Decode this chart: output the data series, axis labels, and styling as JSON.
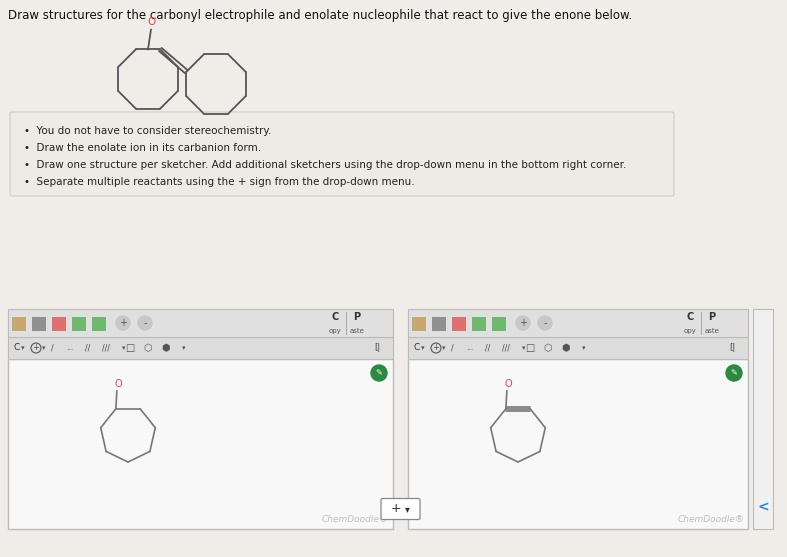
{
  "bg_color": "#f0ede8",
  "title": "Draw structures for the carbonyl electrophile and enolate nucleophile that react to give the enone below.",
  "title_fontsize": 8.5,
  "instructions": [
    "You do not have to consider stereochemistry.",
    "Draw the enolate ion in its carbanion form.",
    "Draw one structure per sketcher. Add additional sketchers using the drop-down menu in the bottom right corner.",
    "Separate multiple reactants using the + sign from the drop-down menu."
  ],
  "instruction_fontsize": 7.5,
  "instruction_box_color": "#f0ede8",
  "instruction_box_border": "#cccccc",
  "mol_color": "#777777",
  "oxygen_color": "#ee4444",
  "chemdoodle_text_color": "#bbbbbb",
  "chemdoodle_fontsize": 6.5,
  "plus_button_color": "#333333",
  "green_circle_color": "#2d8a4e",
  "enone_color": "#555555",
  "toolbar_bg": "#e0e0e0",
  "panel_bg": "#f5f5f5",
  "panel_border": "#bbbbbb"
}
